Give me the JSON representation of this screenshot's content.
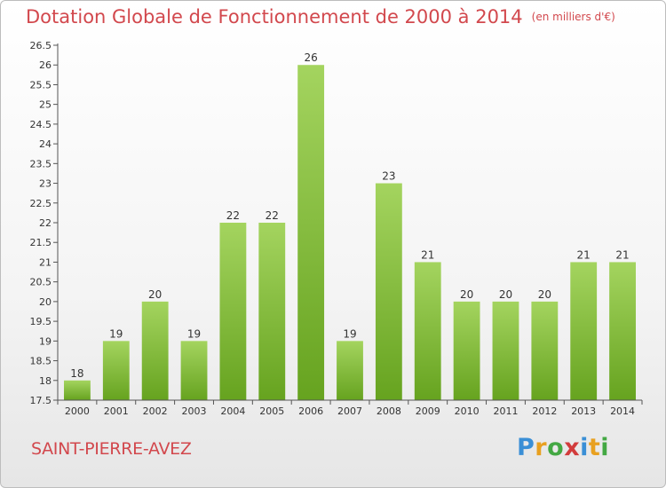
{
  "chart_data": {
    "type": "bar",
    "title": "Dotation Globale de Fonctionnement de 2000 à 2014",
    "unit_label": "(en milliers d'€)",
    "categories": [
      "2000",
      "2001",
      "2002",
      "2003",
      "2004",
      "2005",
      "2006",
      "2007",
      "2008",
      "2009",
      "2010",
      "2011",
      "2012",
      "2013",
      "2014"
    ],
    "values": [
      18,
      19,
      20,
      19,
      22,
      22,
      26,
      19,
      23,
      21,
      20,
      20,
      20,
      21,
      21
    ],
    "data_labels": [
      "18",
      "19",
      "20",
      "19",
      "22",
      "22",
      "26",
      "19",
      "23",
      "21",
      "20",
      "20",
      "20",
      "21",
      "21"
    ],
    "yticks": [
      "17.5",
      "18",
      "18.5",
      "19",
      "19.5",
      "20",
      "20.5",
      "21",
      "21.5",
      "22",
      "22.5",
      "23",
      "23.5",
      "24",
      "24.5",
      "25",
      "25.5",
      "26",
      "26.5"
    ],
    "ylim": [
      17.5,
      26.5
    ],
    "xlabel": "",
    "ylabel": "",
    "grid": false,
    "legend": "none"
  },
  "location": "SAINT-PIERRE-AVEZ",
  "brand": {
    "text": "Proxiti",
    "letters": [
      "P",
      "r",
      "o",
      "x",
      "i",
      "t",
      "i"
    ],
    "colors": [
      "#3a8fd6",
      "#e8a020",
      "#43a843",
      "#d23c3c",
      "#3a8fd6",
      "#e8a020",
      "#43a843"
    ]
  },
  "colors": {
    "accent": "#d2484d",
    "bar_top": "#9ed05a",
    "bar_bottom": "#6aa823",
    "axis": "#555555"
  }
}
